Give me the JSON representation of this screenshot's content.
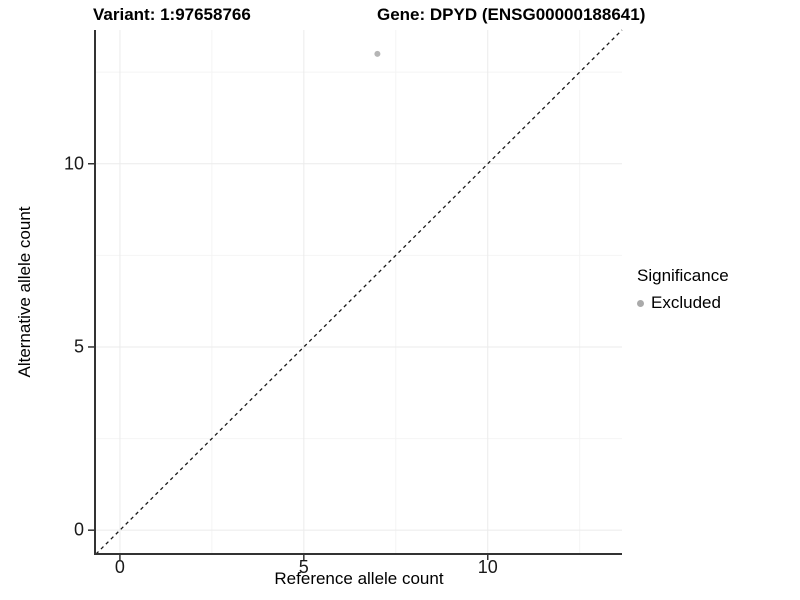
{
  "figure": {
    "title_left": "Variant: 1:97658766",
    "title_right": "Gene: DPYD (ENSG00000188641)"
  },
  "chart_data": {
    "type": "scatter",
    "title": "Variant: 1:97658766    Gene: DPYD (ENSG00000188641)",
    "xlabel": "Reference allele count",
    "ylabel": "Alternative allele count",
    "xlim": [
      -0.65,
      13.65
    ],
    "ylim": [
      -0.65,
      13.65
    ],
    "x_ticks": [
      0,
      5,
      10
    ],
    "x_tick_labels": [
      "0",
      "5",
      "10"
    ],
    "y_ticks": [
      0,
      5,
      10
    ],
    "y_tick_labels": [
      "0",
      "5",
      "10"
    ],
    "x_minor_ticks": [
      2.5,
      7.5,
      12.5
    ],
    "y_minor_ticks": [
      2.5,
      7.5,
      12.5
    ],
    "grid": "major and minor gridlines, no top/right panel border",
    "series": [
      {
        "name": "Excluded",
        "color": "#b5b5b5",
        "point_radius": 3,
        "points": [
          {
            "x": 7,
            "y": 13
          }
        ]
      }
    ],
    "reference_line": {
      "kind": "identity y = x",
      "style": "dashed",
      "color": "#1a1a1a"
    },
    "legend": {
      "title": "Significance",
      "position": "right",
      "items": [
        {
          "label": "Excluded",
          "color": "#aaaaaa"
        }
      ]
    },
    "colors": {
      "background": "#ffffff",
      "grid_major": "#ebebeb",
      "grid_minor": "#f4f4f4",
      "axis_line": "#333333",
      "axis_text": "#1a1a1a"
    }
  }
}
